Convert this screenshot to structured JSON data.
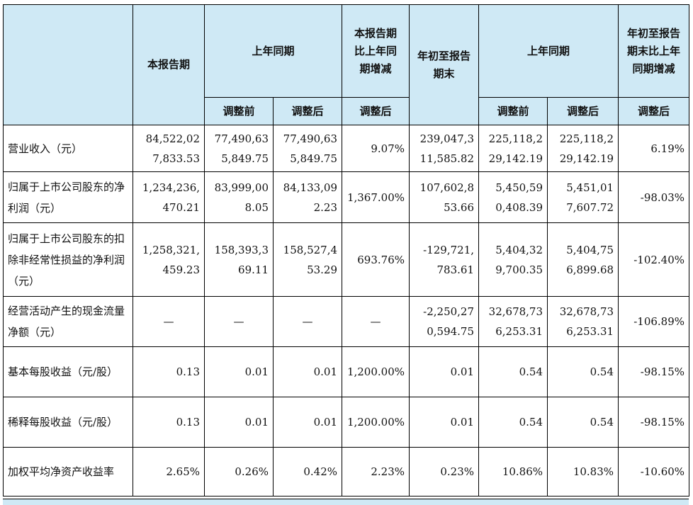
{
  "header": {
    "col_current": "本报告期",
    "col_prior": "上年同期",
    "col_change": "本报告期比上年同期增减",
    "col_ytd": "年初至报告期末",
    "col_prior_ytd": "上年同期",
    "col_ytd_change": "年初至报告期末比上年同期增减",
    "sub_before": "调整前",
    "sub_after": "调整后",
    "sub_change_after": "调整后",
    "sub_before2": "调整前",
    "sub_after2": "调整后",
    "sub_ytd_after": "调整后"
  },
  "rows": [
    {
      "label": "营业收入（元）",
      "v": [
        "84,522,02\n7,833.53",
        "77,490,63\n5,849.75",
        "77,490,63\n5,849.75",
        "9.07%",
        "239,047,3\n11,585.82",
        "225,118,2\n29,142.19",
        "225,118,2\n29,142.19",
        "6.19%"
      ]
    },
    {
      "label": "归属于上市公司股东的净利润（元）",
      "v": [
        "1,234,236,\n470.21",
        "83,999,00\n8.05",
        "84,133,09\n2.23",
        "1,367.00%",
        "107,602,8\n53.66",
        "5,450,59\n0,408.39",
        "5,451,01\n7,607.72",
        "-98.03%"
      ]
    },
    {
      "label": "归属于上市公司股东的扣除非经常性损益的净利润（元）",
      "v": [
        "1,258,321,\n459.23",
        "158,393,3\n69.11",
        "158,527,4\n53.29",
        "693.76%",
        "-129,721,\n783.61",
        "5,404,32\n9,700.35",
        "5,404,75\n6,899.68",
        "-102.40%"
      ]
    },
    {
      "label": "经营活动产生的现金流量净额（元）",
      "v": [
        "—",
        "—",
        "—",
        "—",
        "-2,250,27\n0,594.75",
        "32,678,73\n6,253.31",
        "32,678,73\n6,253.31",
        "-106.89%"
      ]
    },
    {
      "label": "基本每股收益（元/股）",
      "v": [
        "0.13",
        "0.01",
        "0.01",
        "1,200.00%",
        "0.01",
        "0.54",
        "0.54",
        "-98.15%"
      ]
    },
    {
      "label": "稀释每股收益（元/股）",
      "v": [
        "0.13",
        "0.01",
        "0.01",
        "1,200.00%",
        "0.01",
        "0.54",
        "0.54",
        "-98.15%"
      ]
    },
    {
      "label": "加权平均净资产收益率",
      "v": [
        "2.65%",
        "0.26%",
        "0.42%",
        "2.23%",
        "0.23%",
        "10.86%",
        "10.83%",
        "-10.60%"
      ]
    }
  ]
}
